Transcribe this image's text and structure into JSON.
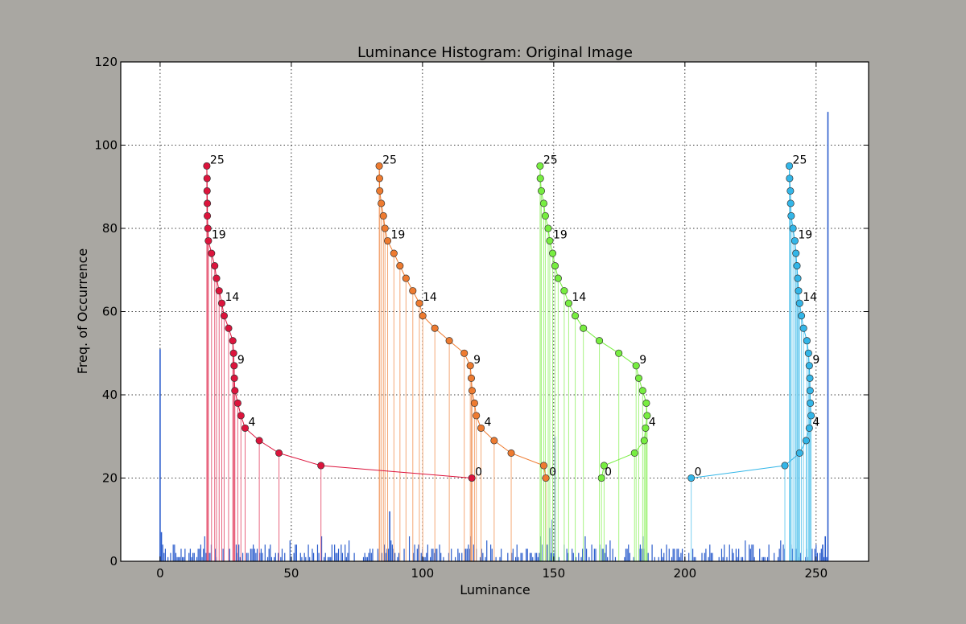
{
  "chart_data": {
    "type": "line",
    "title": "Luminance Histogram: Original Image",
    "xlabel": "Luminance",
    "ylabel": "Freq. of Occurrence",
    "xlim": [
      -15,
      270
    ],
    "ylim": [
      0,
      120
    ],
    "xticks": [
      0,
      50,
      100,
      150,
      200,
      250
    ],
    "yticks": [
      0,
      20,
      40,
      60,
      80,
      100,
      120
    ],
    "grid": true,
    "histogram": {
      "color": "#2a5ccc",
      "spikes": [
        {
          "x": 0,
          "y": 51
        },
        {
          "x": 0.5,
          "y": 7
        },
        {
          "x": 61.5,
          "y": 6
        },
        {
          "x": 87.5,
          "y": 12
        },
        {
          "x": 150.5,
          "y": 30
        },
        {
          "x": 149.5,
          "y": 10
        },
        {
          "x": 148.5,
          "y": 8
        },
        {
          "x": 254.5,
          "y": 108
        },
        {
          "x": 253.5,
          "y": 6
        },
        {
          "x": 252.5,
          "y": 4
        }
      ]
    },
    "series": [
      {
        "color": "#dc143c",
        "points": [
          [
            17.8,
            95
          ],
          [
            17.9,
            92
          ],
          [
            17.9,
            89
          ],
          [
            18.0,
            86
          ],
          [
            18.0,
            83
          ],
          [
            18.2,
            80
          ],
          [
            18.4,
            77
          ],
          [
            19.6,
            74
          ],
          [
            20.8,
            71
          ],
          [
            21.5,
            68
          ],
          [
            22.5,
            65
          ],
          [
            23.5,
            62
          ],
          [
            24.4,
            59
          ],
          [
            26.1,
            56
          ],
          [
            27.7,
            53
          ],
          [
            28.0,
            50
          ],
          [
            28.2,
            47
          ],
          [
            28.3,
            44
          ],
          [
            28.5,
            41
          ],
          [
            29.6,
            38
          ],
          [
            30.8,
            35
          ],
          [
            32.4,
            32
          ],
          [
            37.8,
            29
          ],
          [
            45.3,
            26
          ],
          [
            61.3,
            23
          ],
          [
            118.8,
            20
          ]
        ],
        "labels": [
          {
            "index": 0,
            "text": "25"
          },
          {
            "index": 6,
            "text": "19"
          },
          {
            "index": 11,
            "text": "14"
          },
          {
            "index": 16,
            "text": "9"
          },
          {
            "index": 21,
            "text": "4"
          },
          {
            "index": 25,
            "text": "0"
          }
        ]
      },
      {
        "color": "#ee7b30",
        "points": [
          [
            83.5,
            95
          ],
          [
            83.6,
            92
          ],
          [
            83.7,
            89
          ],
          [
            84.3,
            86
          ],
          [
            85.1,
            83
          ],
          [
            85.7,
            80
          ],
          [
            86.7,
            77
          ],
          [
            89.1,
            74
          ],
          [
            91.4,
            71
          ],
          [
            93.7,
            68
          ],
          [
            96.3,
            65
          ],
          [
            98.8,
            62
          ],
          [
            100.1,
            59
          ],
          [
            104.7,
            56
          ],
          [
            110.2,
            53
          ],
          [
            115.9,
            50
          ],
          [
            118.2,
            47
          ],
          [
            118.6,
            44
          ],
          [
            118.9,
            41
          ],
          [
            119.8,
            38
          ],
          [
            120.5,
            35
          ],
          [
            122.3,
            32
          ],
          [
            127.3,
            29
          ],
          [
            133.8,
            26
          ],
          [
            146.2,
            23
          ],
          [
            147.0,
            20
          ]
        ],
        "labels": [
          {
            "index": 0,
            "text": "25"
          },
          {
            "index": 6,
            "text": "19"
          },
          {
            "index": 11,
            "text": "14"
          },
          {
            "index": 16,
            "text": "9"
          },
          {
            "index": 21,
            "text": "4"
          },
          {
            "index": 25,
            "text": "0"
          }
        ]
      },
      {
        "color": "#77ee40",
        "points": [
          [
            144.8,
            95
          ],
          [
            144.9,
            92
          ],
          [
            145.3,
            89
          ],
          [
            146.2,
            86
          ],
          [
            146.8,
            83
          ],
          [
            147.9,
            80
          ],
          [
            148.5,
            77
          ],
          [
            149.6,
            74
          ],
          [
            150.5,
            71
          ],
          [
            151.7,
            68
          ],
          [
            154.0,
            65
          ],
          [
            155.7,
            62
          ],
          [
            158.2,
            59
          ],
          [
            161.3,
            56
          ],
          [
            167.4,
            53
          ],
          [
            174.8,
            50
          ],
          [
            181.4,
            47
          ],
          [
            182.4,
            44
          ],
          [
            183.9,
            41
          ],
          [
            185.3,
            38
          ],
          [
            185.6,
            35
          ],
          [
            185.0,
            32
          ],
          [
            184.5,
            29
          ],
          [
            180.8,
            26
          ],
          [
            169.2,
            23
          ],
          [
            168.2,
            20
          ]
        ],
        "labels": [
          {
            "index": 0,
            "text": "25"
          },
          {
            "index": 6,
            "text": "19"
          },
          {
            "index": 11,
            "text": "14"
          },
          {
            "index": 16,
            "text": "9"
          },
          {
            "index": 21,
            "text": "4"
          },
          {
            "index": 25,
            "text": "0"
          }
        ]
      },
      {
        "color": "#33b6e8",
        "points": [
          [
            239.8,
            95
          ],
          [
            239.9,
            92
          ],
          [
            240.2,
            89
          ],
          [
            240.3,
            86
          ],
          [
            240.5,
            83
          ],
          [
            241.2,
            80
          ],
          [
            241.9,
            77
          ],
          [
            242.3,
            74
          ],
          [
            242.7,
            71
          ],
          [
            243.0,
            68
          ],
          [
            243.3,
            65
          ],
          [
            243.7,
            62
          ],
          [
            244.4,
            59
          ],
          [
            245.2,
            56
          ],
          [
            246.5,
            53
          ],
          [
            247.1,
            50
          ],
          [
            247.4,
            47
          ],
          [
            247.6,
            44
          ],
          [
            247.7,
            41
          ],
          [
            247.8,
            38
          ],
          [
            248.1,
            35
          ],
          [
            247.4,
            32
          ],
          [
            246.2,
            29
          ],
          [
            243.7,
            26
          ],
          [
            238.1,
            23
          ],
          [
            202.4,
            20
          ]
        ],
        "labels": [
          {
            "index": 0,
            "text": "25"
          },
          {
            "index": 6,
            "text": "19"
          },
          {
            "index": 11,
            "text": "14"
          },
          {
            "index": 16,
            "text": "9"
          },
          {
            "index": 21,
            "text": "4"
          },
          {
            "index": 25,
            "text": "0"
          }
        ]
      }
    ]
  }
}
